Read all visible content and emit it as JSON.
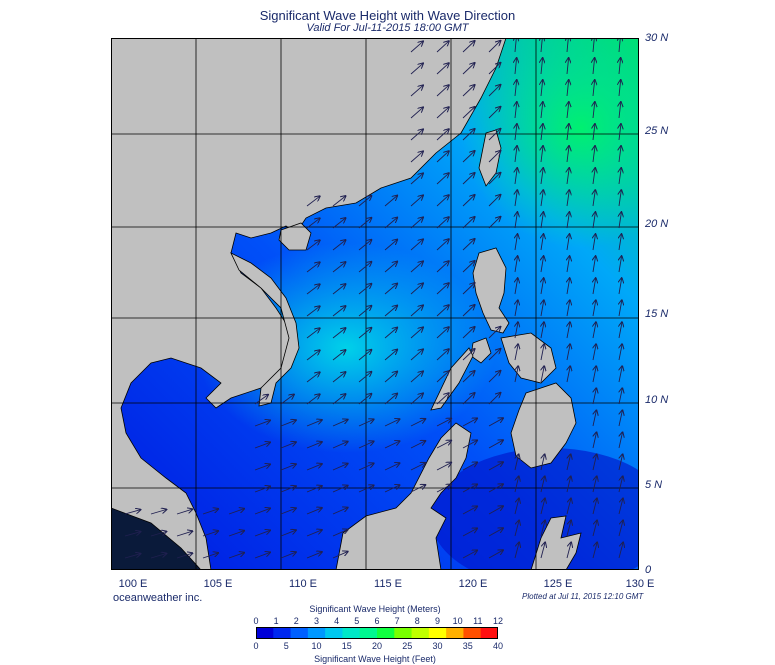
{
  "header": {
    "title": "Significant Wave Height with Wave Direction",
    "subtitle": "Valid For Jul-11-2015 18:00 GMT"
  },
  "map": {
    "lat_labels": [
      "30 N",
      "25 N",
      "20 N",
      "15 N",
      "10 N",
      "5 N",
      "0"
    ],
    "lon_labels": [
      "100 E",
      "105 E",
      "110 E",
      "115 E",
      "120 E",
      "125 E",
      "130 E"
    ],
    "land_color": "#c0c0c0",
    "coast_color": "#000000"
  },
  "footer": {
    "credit": "oceanweather inc.",
    "plotted": "Plotted at Jul 11, 2015 12:10 GMT"
  },
  "colorbar": {
    "meters_title": "Significant Wave Height (Meters)",
    "feet_title": "Significant Wave Height (Feet)",
    "meters_ticks": [
      "0",
      "1",
      "2",
      "3",
      "4",
      "5",
      "6",
      "7",
      "8",
      "9",
      "10",
      "11",
      "12"
    ],
    "feet_ticks": [
      "0",
      "5",
      "10",
      "15",
      "20",
      "25",
      "30",
      "35",
      "40"
    ],
    "colors": [
      "#0000d8",
      "#0028f0",
      "#0060ff",
      "#0098ff",
      "#00c8f0",
      "#00e8c8",
      "#00f890",
      "#10ff40",
      "#78ff00",
      "#c0ff00",
      "#ffff00",
      "#ffb000",
      "#ff5000",
      "#ff1010"
    ]
  }
}
